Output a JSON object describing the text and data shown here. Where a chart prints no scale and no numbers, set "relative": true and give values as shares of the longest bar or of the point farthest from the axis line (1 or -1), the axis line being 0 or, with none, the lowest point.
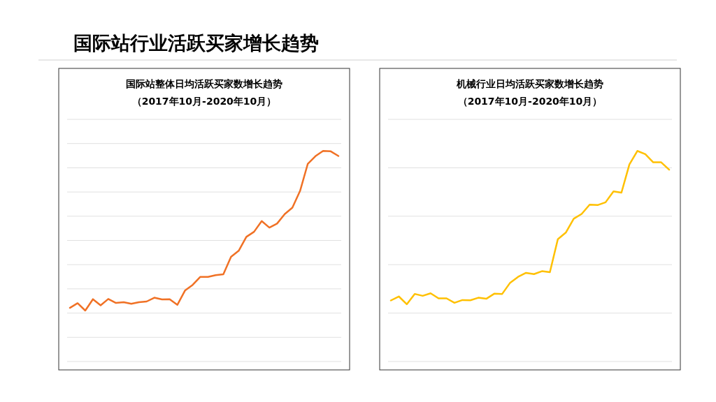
{
  "chart_data": [
    {
      "type": "line",
      "title": "国际站整体日均活跃买家数增长趋势",
      "subtitle": "（2017年10月-2020年10月）",
      "annotations": [
        "国际站行业活跃买家增长趋势"
      ],
      "relative": true,
      "grid": "y",
      "categories": [
        null,
        null,
        null,
        null,
        null,
        null,
        null,
        null,
        null,
        null,
        null,
        null,
        null,
        null,
        null,
        null,
        null,
        null,
        null,
        null,
        null,
        null,
        null,
        null,
        null,
        null,
        null,
        null,
        null,
        null,
        null,
        null,
        null,
        null,
        null,
        null
      ],
      "series": [
        {
          "color": "#f07125",
          "values": [
            0.255,
            0.277,
            0.242,
            0.296,
            0.267,
            0.297,
            0.278,
            0.282,
            0.274,
            0.282,
            0.285,
            0.303,
            0.295,
            0.296,
            0.269,
            0.337,
            0.364,
            0.402,
            0.402,
            0.41,
            0.414,
            0.497,
            0.526,
            0.592,
            0.616,
            0.667,
            0.636,
            0.655,
            0.7,
            0.731,
            0.81,
            0.938,
            0.975,
            1,
            0.998,
            0.976
          ]
        }
      ]
    },
    {
      "type": "line",
      "title": "机械行业日均活跃买家数增长趋势",
      "subtitle": "（2017年10月-2020年10月）",
      "relative": true,
      "grid": "y",
      "categories": [
        null,
        null,
        null,
        null,
        null,
        null,
        null,
        null,
        null,
        null,
        null,
        null,
        null,
        null,
        null,
        null,
        null,
        null,
        null,
        null,
        null,
        null,
        null,
        null,
        null,
        null,
        null,
        null,
        null,
        null,
        null,
        null,
        null,
        null,
        null,
        null
      ],
      "series": [
        {
          "color": "#ffc000",
          "values": [
            0.29,
            0.309,
            0.272,
            0.321,
            0.312,
            0.324,
            0.3,
            0.3,
            0.279,
            0.292,
            0.291,
            0.303,
            0.298,
            0.322,
            0.321,
            0.374,
            0.402,
            0.421,
            0.415,
            0.429,
            0.424,
            0.581,
            0.612,
            0.678,
            0.701,
            0.745,
            0.743,
            0.756,
            0.808,
            0.802,
            0.936,
            1,
            0.985,
            0.946,
            0.946,
            0.911
          ]
        }
      ]
    }
  ]
}
